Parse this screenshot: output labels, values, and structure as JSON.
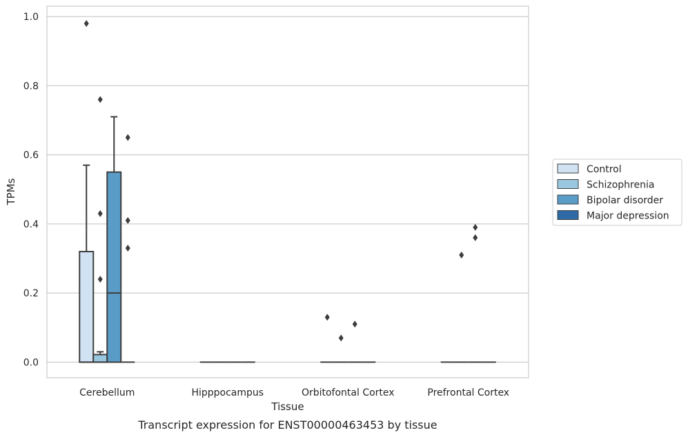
{
  "caption": "Transcript expression for ENST00000463453 by tissue",
  "chart_data": {
    "type": "box",
    "xlabel": "Tissue",
    "ylabel": "TPMs",
    "ylim": [
      -0.045,
      1.03
    ],
    "yticks": [
      0.0,
      0.2,
      0.4,
      0.6,
      0.8,
      1.0
    ],
    "ytick_labels": [
      "0.0",
      "0.2",
      "0.4",
      "0.6",
      "0.8",
      "1.0"
    ],
    "grid": true,
    "legend_position": "right",
    "categories": [
      "Cerebellum",
      "Hipppocampus",
      "Orbitofontal Cortex",
      "Prefrontal Cortex"
    ],
    "series": [
      {
        "name": "Control",
        "color": "#d1e2f2",
        "boxes": [
          {
            "q1": 0.0,
            "median": 0.0,
            "q3": 0.32,
            "whisker_low": 0.0,
            "whisker_high": 0.57,
            "outliers": [
              0.98
            ]
          },
          {
            "q1": 0.0,
            "median": 0.0,
            "q3": 0.0,
            "whisker_low": 0.0,
            "whisker_high": 0.0,
            "outliers": []
          },
          {
            "q1": 0.0,
            "median": 0.0,
            "q3": 0.0,
            "whisker_low": 0.0,
            "whisker_high": 0.0,
            "outliers": [
              0.13
            ]
          },
          {
            "q1": 0.0,
            "median": 0.0,
            "q3": 0.0,
            "whisker_low": 0.0,
            "whisker_high": 0.0,
            "outliers": []
          }
        ]
      },
      {
        "name": "Schizophrenia",
        "color": "#9ac7e0",
        "boxes": [
          {
            "q1": 0.0,
            "median": 0.0,
            "q3": 0.022,
            "whisker_low": 0.0,
            "whisker_high": 0.03,
            "outliers": [
              0.24,
              0.43,
              0.76
            ]
          },
          {
            "q1": 0.0,
            "median": 0.0,
            "q3": 0.0,
            "whisker_low": 0.0,
            "whisker_high": 0.0,
            "outliers": []
          },
          {
            "q1": 0.0,
            "median": 0.0,
            "q3": 0.0,
            "whisker_low": 0.0,
            "whisker_high": 0.0,
            "outliers": [
              0.07
            ]
          },
          {
            "q1": 0.0,
            "median": 0.0,
            "q3": 0.0,
            "whisker_low": 0.0,
            "whisker_high": 0.0,
            "outliers": [
              0.31
            ]
          }
        ]
      },
      {
        "name": "Bipolar disorder",
        "color": "#5a9cc8",
        "boxes": [
          {
            "q1": 0.0,
            "median": 0.2,
            "q3": 0.55,
            "whisker_low": 0.0,
            "whisker_high": 0.71,
            "outliers": []
          },
          {
            "q1": 0.0,
            "median": 0.0,
            "q3": 0.0,
            "whisker_low": 0.0,
            "whisker_high": 0.0,
            "outliers": []
          },
          {
            "q1": 0.0,
            "median": 0.0,
            "q3": 0.0,
            "whisker_low": 0.0,
            "whisker_high": 0.0,
            "outliers": [
              0.11
            ]
          },
          {
            "q1": 0.0,
            "median": 0.0,
            "q3": 0.0,
            "whisker_low": 0.0,
            "whisker_high": 0.0,
            "outliers": [
              0.36,
              0.39
            ]
          }
        ]
      },
      {
        "name": "Major depression",
        "color": "#2d6aa6",
        "boxes": [
          {
            "q1": 0.0,
            "median": 0.0,
            "q3": 0.0,
            "whisker_low": 0.0,
            "whisker_high": 0.0,
            "outliers": [
              0.33,
              0.41,
              0.65
            ]
          },
          {
            "q1": 0.0,
            "median": 0.0,
            "q3": 0.0,
            "whisker_low": 0.0,
            "whisker_high": 0.0,
            "outliers": []
          },
          {
            "q1": 0.0,
            "median": 0.0,
            "q3": 0.0,
            "whisker_low": 0.0,
            "whisker_high": 0.0,
            "outliers": []
          },
          {
            "q1": 0.0,
            "median": 0.0,
            "q3": 0.0,
            "whisker_low": 0.0,
            "whisker_high": 0.0,
            "outliers": []
          }
        ]
      }
    ]
  }
}
